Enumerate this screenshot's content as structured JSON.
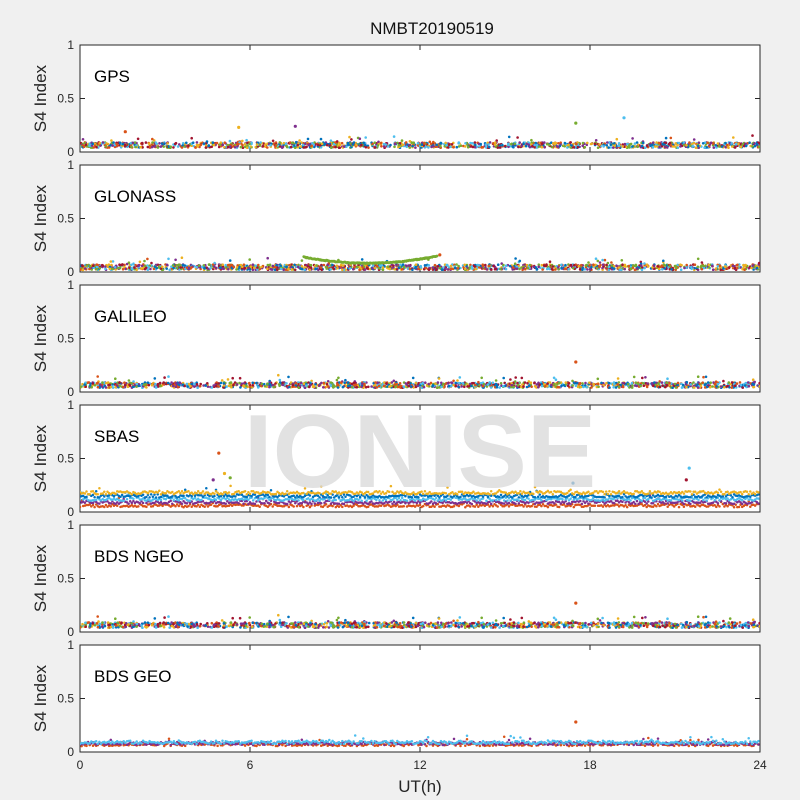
{
  "chart_data": {
    "type": "scatter",
    "title": "NMBT20190519",
    "xlabel": "UT(h)",
    "xlim": [
      0,
      24
    ],
    "xticks": [
      "0",
      "6",
      "12",
      "18",
      "24"
    ],
    "xtick_values": [
      0,
      6,
      12,
      18,
      24
    ],
    "watermark": "IONISE",
    "series_colors": [
      "#0072bd",
      "#d95319",
      "#edb120",
      "#7e2f8e",
      "#77ac30",
      "#4dbeee",
      "#a2142f"
    ],
    "panels": [
      {
        "label": "GPS",
        "ylabel": "S4 Index",
        "ylim": [
          0,
          1
        ],
        "yticks": [
          "0",
          "0.5",
          "1"
        ],
        "ytick_values": [
          0,
          0.5,
          1
        ],
        "baseline_s4": 0.06,
        "outliers": [
          [
            1.6,
            0.19
          ],
          [
            5.6,
            0.23
          ],
          [
            7.6,
            0.24
          ],
          [
            17.5,
            0.27
          ],
          [
            19.2,
            0.32
          ]
        ]
      },
      {
        "label": "GLONASS",
        "ylabel": "S4 Index",
        "ylim": [
          0,
          1
        ],
        "yticks": [
          "0",
          "0.5",
          "1"
        ],
        "ytick_values": [
          0,
          0.5,
          1
        ],
        "baseline_s4": 0.04,
        "arc": {
          "x_start": 7.9,
          "x_end": 12.6,
          "y_start": 0.14,
          "y_mid": 0.06,
          "y_end": 0.15
        },
        "outliers": [
          [
            12.7,
            0.16
          ]
        ]
      },
      {
        "label": "GALILEO",
        "ylabel": "S4 Index",
        "ylim": [
          0,
          1
        ],
        "yticks": [
          "0",
          "0.5",
          "1"
        ],
        "ytick_values": [
          0,
          0.5,
          1
        ],
        "baseline_s4": 0.06,
        "outliers": [
          [
            17.5,
            0.28
          ]
        ]
      },
      {
        "label": "SBAS",
        "ylabel": "S4 Index",
        "ylim": [
          0,
          1
        ],
        "yticks": [
          "0",
          "0.5",
          "1"
        ],
        "ytick_values": [
          0,
          0.5,
          1
        ],
        "bands_s4": [
          0.06,
          0.09,
          0.12,
          0.15,
          0.18
        ],
        "outliers": [
          [
            4.9,
            0.55
          ],
          [
            5.1,
            0.36
          ],
          [
            4.7,
            0.3
          ],
          [
            5.3,
            0.32
          ],
          [
            21.5,
            0.41
          ],
          [
            21.4,
            0.3
          ],
          [
            17.4,
            0.27
          ]
        ]
      },
      {
        "label": "BDS NGEO",
        "ylabel": "S4 Index",
        "ylim": [
          0,
          1
        ],
        "yticks": [
          "0",
          "0.5",
          "1"
        ],
        "ytick_values": [
          0,
          0.5,
          1
        ],
        "baseline_s4": 0.06,
        "outliers": [
          [
            17.5,
            0.27
          ]
        ]
      },
      {
        "label": "BDS GEO",
        "ylabel": "S4 Index",
        "ylim": [
          0,
          1
        ],
        "yticks": [
          "0",
          "0.5",
          "1"
        ],
        "ytick_values": [
          0,
          0.5,
          1
        ],
        "bands_s4": [
          0.07,
          0.08,
          0.09
        ],
        "outliers": [
          [
            17.5,
            0.28
          ]
        ]
      }
    ]
  }
}
